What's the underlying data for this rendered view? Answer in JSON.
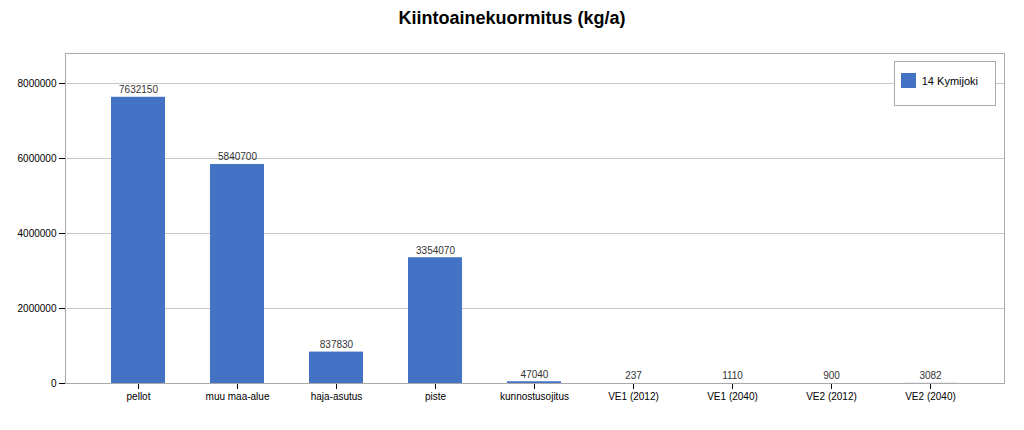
{
  "chart_data": {
    "type": "bar",
    "title": "Kiintoainekuormitus (kg/a)",
    "categories": [
      "pellot",
      "muu maa-alue",
      "haja-asutus",
      "piste",
      "kunnostusojitus",
      "VE1 (2012)",
      "VE1 (2040)",
      "VE2 (2012)",
      "VE2 (2040)"
    ],
    "series": [
      {
        "name": "14 Kymijoki",
        "color": "#4472C4",
        "values": [
          7632150,
          5840700,
          837830,
          3354070,
          47040,
          237,
          1110,
          900,
          3082
        ]
      }
    ],
    "ylim": [
      0,
      8800000
    ],
    "yticks": [
      0,
      2000000,
      4000000,
      6000000,
      8000000
    ],
    "grid": true,
    "legend": "upper right",
    "data_labels": true
  }
}
